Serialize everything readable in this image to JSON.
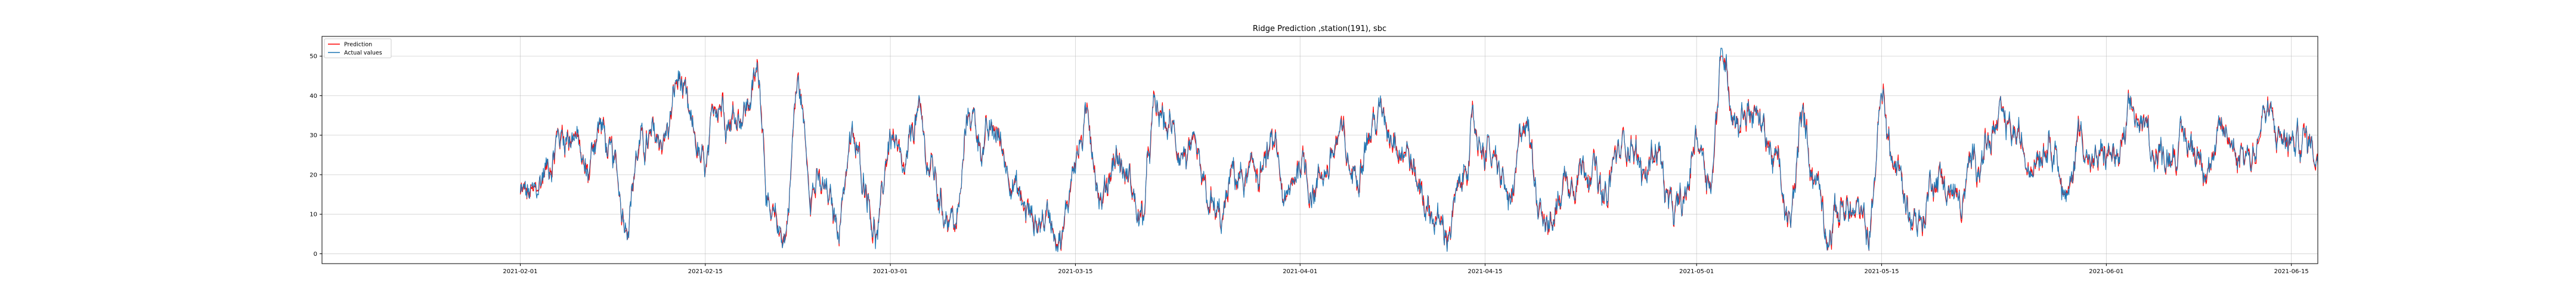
{
  "chart_data": {
    "type": "line",
    "title": "Ridge Prediction ,station(191), sbc",
    "xlabel": "",
    "ylabel": "",
    "x_start": "2021-02-01",
    "x_end": "2021-06-15",
    "xlim_days": [
      -15,
      136
    ],
    "ylim": [
      -2.5,
      55
    ],
    "yticks": [
      0,
      10,
      20,
      30,
      40,
      50
    ],
    "xticks": [
      {
        "label": "2021-02-01",
        "day": 0
      },
      {
        "label": "2021-02-15",
        "day": 14
      },
      {
        "label": "2021-03-01",
        "day": 28
      },
      {
        "label": "2021-03-15",
        "day": 42
      },
      {
        "label": "2021-04-01",
        "day": 59
      },
      {
        "label": "2021-04-15",
        "day": 73
      },
      {
        "label": "2021-05-01",
        "day": 89
      },
      {
        "label": "2021-05-15",
        "day": 103
      },
      {
        "label": "2021-06-01",
        "day": 120
      },
      {
        "label": "2021-06-15",
        "day": 134
      }
    ],
    "grid": true,
    "legend": "top-left",
    "series": [
      {
        "name": "Prediction",
        "color": "#ff0000"
      },
      {
        "name": "Actual values",
        "color": "#1f77b4"
      }
    ],
    "sample_interval_days": 0.0416667,
    "series_end_day": 137.0,
    "anchors_day": [
      0,
      1,
      2,
      3,
      4,
      5,
      6,
      7,
      8,
      9,
      10,
      11,
      12,
      13,
      14,
      15,
      16,
      17,
      18,
      19,
      20,
      21,
      22,
      23,
      24,
      25,
      26,
      27,
      28,
      29,
      30,
      31,
      32,
      33,
      34,
      35,
      36,
      37,
      38,
      39,
      40,
      41,
      42,
      43,
      44,
      45,
      46,
      47,
      48,
      49,
      50,
      51,
      52,
      53,
      54,
      55,
      56,
      57,
      58,
      59,
      60,
      61,
      62,
      63,
      64,
      65,
      66,
      67,
      68,
      69,
      70,
      71,
      72,
      73,
      74,
      75,
      76,
      77,
      78,
      79,
      80,
      81,
      82,
      83,
      84,
      85,
      86,
      87,
      88,
      89,
      90,
      91,
      92,
      93,
      94,
      95,
      96,
      97,
      98,
      99,
      100,
      101,
      102,
      103,
      104,
      105,
      106,
      107,
      108,
      109,
      110,
      111,
      112,
      113,
      114,
      115,
      116,
      117,
      118,
      119,
      120,
      121,
      122,
      123,
      124,
      125,
      126,
      127,
      128,
      129,
      130,
      131,
      132,
      133,
      134,
      135,
      136,
      137
    ],
    "actual_anchor_values": [
      15,
      14,
      22,
      30,
      31,
      20,
      33,
      22,
      10,
      27,
      28,
      30,
      44,
      30,
      20,
      40,
      35,
      37,
      45,
      6,
      5,
      42,
      19,
      15,
      8,
      28,
      20,
      5,
      30,
      18,
      35,
      22,
      12,
      8,
      36,
      28,
      30,
      22,
      12,
      8,
      10,
      5,
      25,
      33,
      14,
      25,
      19,
      8,
      35,
      32,
      27,
      22,
      12,
      8,
      20,
      18,
      22,
      26,
      12,
      24,
      17,
      22,
      29,
      20,
      30,
      35,
      32,
      27,
      17,
      10,
      5,
      14,
      30,
      28,
      20,
      12,
      35,
      16,
      7,
      19,
      22,
      24,
      12,
      25,
      30,
      19,
      28,
      10,
      11,
      30,
      20,
      50,
      35,
      37,
      32,
      23,
      6,
      33,
      20,
      7,
      12,
      10,
      5,
      38,
      22,
      12,
      8,
      21,
      17,
      12,
      24,
      28,
      32,
      30,
      24,
      28,
      30,
      12,
      32,
      22,
      25,
      24,
      35,
      30,
      25,
      27,
      28,
      26,
      24,
      30,
      27,
      25,
      35,
      30,
      28,
      29,
      26,
      25
    ],
    "noise_amplitude": 5.5,
    "prediction_noise": 1.6
  }
}
